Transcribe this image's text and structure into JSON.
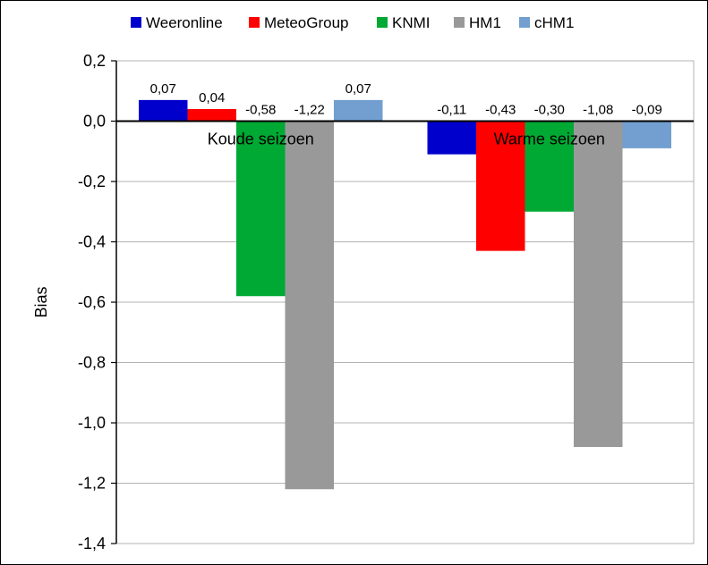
{
  "chart_data": {
    "type": "bar",
    "categories": [
      "Koude seizoen",
      "Warme seizoen"
    ],
    "series": [
      {
        "name": "Weeronline",
        "color": "#0000cc",
        "values": [
          0.07,
          -0.11
        ],
        "labels": [
          "0,07",
          "-0,11"
        ]
      },
      {
        "name": "MeteoGroup",
        "color": "#ff0000",
        "values": [
          0.04,
          -0.43
        ],
        "labels": [
          "0,04",
          "-0,43"
        ]
      },
      {
        "name": "KNMI",
        "color": "#00a933",
        "values": [
          -0.58,
          -0.3
        ],
        "labels": [
          "-0,58",
          "-0,30"
        ]
      },
      {
        "name": "HM1",
        "color": "#999999",
        "values": [
          -1.22,
          -1.08
        ],
        "labels": [
          "-1,22",
          "-1,08"
        ]
      },
      {
        "name": "cHM1",
        "color": "#729fcf",
        "values": [
          0.07,
          -0.09
        ],
        "labels": [
          "0,07",
          "-0,09"
        ]
      }
    ],
    "title": "",
    "xlabel": "",
    "ylabel": "Bias",
    "ylim": [
      -1.4,
      0.2
    ],
    "yticks": [
      0.2,
      0.0,
      -0.2,
      -0.4,
      -0.6,
      -0.8,
      -1.0,
      -1.2,
      -1.4
    ],
    "ytick_labels": [
      "0,2",
      "0,0",
      "-0,2",
      "-0,4",
      "-0,6",
      "-0,8",
      "-1,0",
      "-1,2",
      "-1,4"
    ],
    "grid": true,
    "legend_position": "top"
  }
}
